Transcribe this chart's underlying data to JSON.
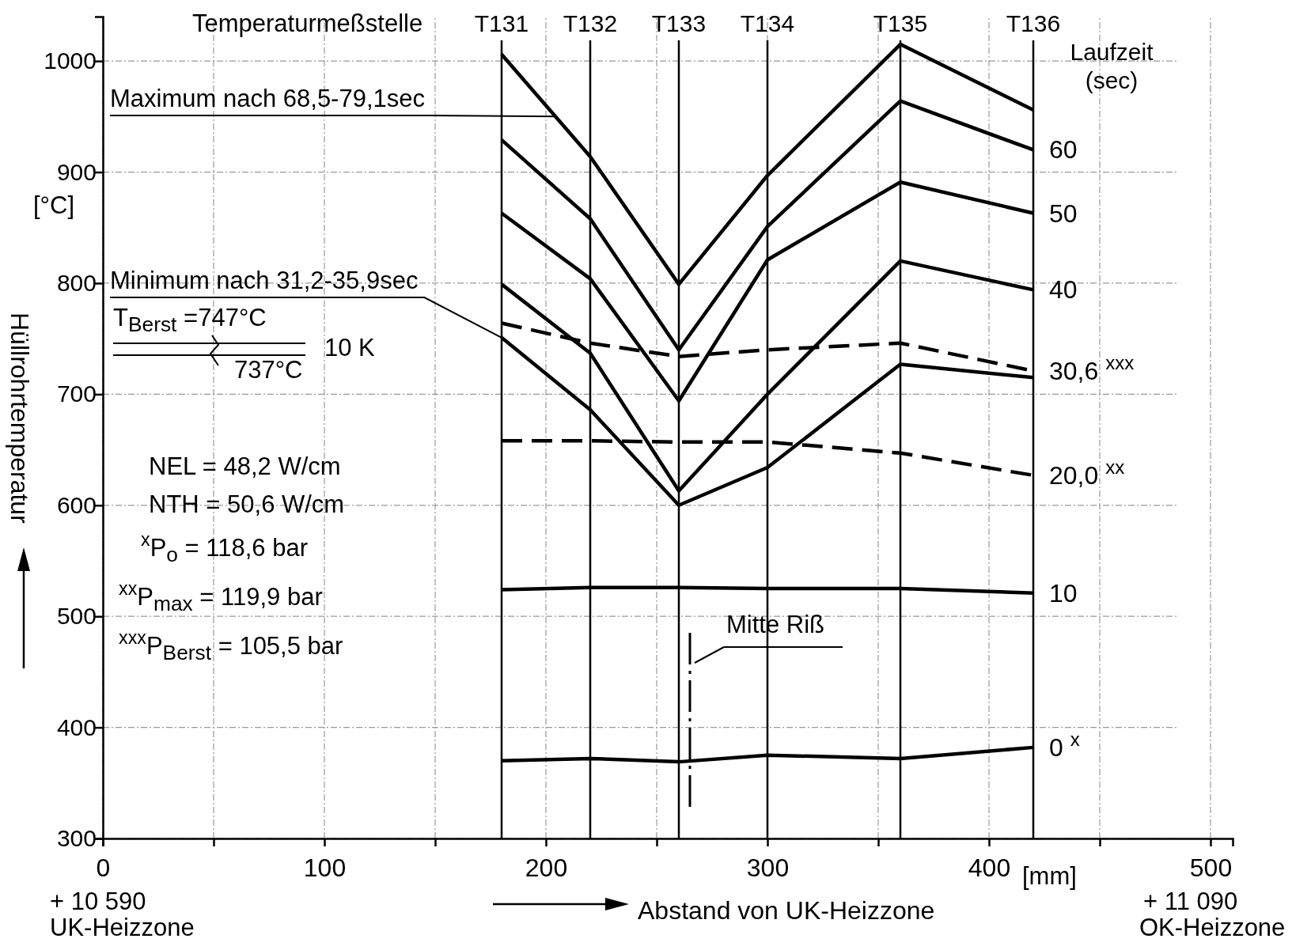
{
  "chart_data": {
    "type": "line",
    "xlabel": "Abstand von UK-Heizzone",
    "ylabel": "Hüllrohrtemperatur",
    "legend_title": "Laufzeit (sec)",
    "x": [
      180,
      220,
      260,
      300,
      360,
      420
    ],
    "xlim": [
      0,
      510
    ],
    "xticks": [
      0,
      {
        "value": 50,
        "label": null
      },
      100,
      {
        "value": 150,
        "label": null
      },
      200,
      {
        "value": 250,
        "label": null
      },
      300,
      {
        "value": 350,
        "label": null
      },
      400,
      {
        "value": 450,
        "label": null
      },
      500
    ],
    "ylim": [
      300,
      1040
    ],
    "yticks": [
      300,
      400,
      500,
      600,
      700,
      800,
      900,
      1000
    ],
    "grid": true,
    "series": [
      {
        "color": "#000000",
        "values": [
          1006,
          914,
          799,
          897,
          1015,
          956
        ]
      },
      {
        "name": "60",
        "color": "#000000",
        "values": [
          929,
          858,
          740,
          851,
          964,
          920
        ]
      },
      {
        "name": "50",
        "color": "#000000",
        "values": [
          863,
          804,
          694,
          821,
          891,
          863
        ]
      },
      {
        "name": "40",
        "color": "#000000",
        "values": [
          799,
          737,
          613,
          700,
          820,
          794
        ]
      },
      {
        "color": "#000000",
        "values": [
          751,
          686,
          600,
          634,
          727,
          715
        ]
      },
      {
        "name": "30,6 $^{xxx}$",
        "color": "#000000",
        "line_style": "dashed",
        "values": [
          764,
          746,
          734,
          740,
          746,
          721
        ]
      },
      {
        "name": "20,0 $^{xx}$",
        "color": "#000000",
        "line_style": "dashed",
        "values": [
          658,
          658,
          657,
          657,
          647,
          627
        ]
      },
      {
        "name": "10",
        "color": "#000000",
        "values": [
          524,
          526,
          526,
          525,
          525,
          521
        ]
      },
      {
        "name": "0 $^{x}$",
        "color": "#000000",
        "values": [
          370,
          372,
          369,
          375,
          372,
          382
        ]
      }
    ],
    "ref_lines": [
      {
        "axis": "x",
        "value": 180,
        "label": "T131",
        "color": "#000000"
      },
      {
        "axis": "x",
        "value": 220,
        "label": "T132",
        "color": "#000000"
      },
      {
        "axis": "x",
        "value": 260,
        "label": "T133",
        "color": "#000000"
      },
      {
        "axis": "x",
        "value": 300,
        "label": "T134",
        "color": "#000000"
      },
      {
        "axis": "x",
        "value": 360,
        "label": "T135",
        "color": "#000000"
      },
      {
        "axis": "x",
        "value": 420,
        "label": "T136",
        "color": "#000000"
      }
    ],
    "annotations": [
      "Temperaturmeßstelle",
      {
        "text": "Maximum nach 68,5-79,1sec",
        "x": 205,
        "y": 950
      },
      {
        "text": "Minimum nach 31,2-35,9sec",
        "x": 180,
        "y": 751
      },
      "T$_{Berst}$ =747°C",
      "737°C",
      "10 K",
      "NEL = 48,2 W/cm",
      "NTH = 50,6 W/cm",
      "$^{x}$P$_{o}$ = 118,6 bar",
      "$^{xx}$P$_{max}$ = 119,9 bar",
      "$^{xxx}$P$_{Berst}$ = 105,5 bar",
      "Mitte Riß",
      "[°C]",
      "[mm]",
      "+ 10 590",
      "UK-Heizzone",
      "+ 11 090",
      "OK-Heizzone"
    ]
  }
}
